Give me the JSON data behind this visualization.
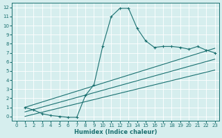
{
  "xlabel": "Humidex (Indice chaleur)",
  "bg_color": "#d6eeee",
  "grid_color": "#ffffff",
  "line_color": "#1a7070",
  "xlim": [
    -0.5,
    23.5
  ],
  "ylim": [
    -0.5,
    12.5
  ],
  "xticks": [
    0,
    1,
    2,
    3,
    4,
    5,
    6,
    7,
    8,
    9,
    10,
    11,
    12,
    13,
    14,
    15,
    16,
    17,
    18,
    19,
    20,
    21,
    22,
    23
  ],
  "yticks": [
    0,
    1,
    2,
    3,
    4,
    5,
    6,
    7,
    8,
    9,
    10,
    11,
    12
  ],
  "curve_x": [
    1,
    2,
    3,
    4,
    5,
    6,
    7,
    8,
    9,
    10,
    11,
    12,
    13,
    14,
    15,
    16,
    17,
    18,
    19,
    20,
    21,
    22,
    23
  ],
  "curve_y": [
    1.0,
    0.7,
    0.3,
    0.1,
    0.0,
    -0.1,
    -0.1,
    2.3,
    3.5,
    7.7,
    11.0,
    11.9,
    11.9,
    9.7,
    8.3,
    7.6,
    7.7,
    7.7,
    7.6,
    7.4,
    7.7,
    7.3,
    7.0
  ],
  "line1_x": [
    1,
    23
  ],
  "line1_y": [
    1.0,
    7.5
  ],
  "line2_x": [
    1,
    23
  ],
  "line2_y": [
    0.5,
    6.3
  ],
  "line3_x": [
    1,
    23
  ],
  "line3_y": [
    0.0,
    5.1
  ]
}
